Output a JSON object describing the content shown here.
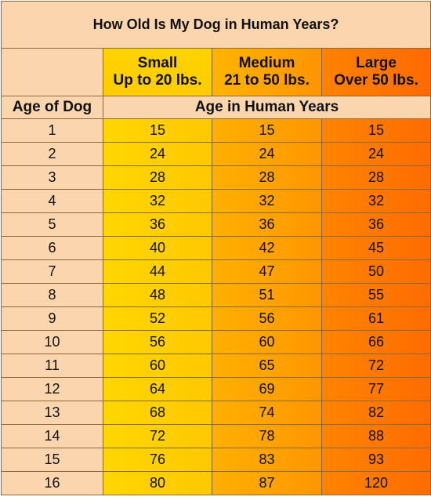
{
  "title": "How Old Is My Dog in Human Years?",
  "columns": [
    {
      "name": "Small",
      "range": "Up to 20 lbs."
    },
    {
      "name": "Medium",
      "range": "21 to 50 lbs."
    },
    {
      "name": "Large",
      "range": "Over 50 lbs."
    }
  ],
  "age_header": "Age of Dog",
  "human_header": "Age in Human Years",
  "rows": [
    {
      "age": "1",
      "small": "15",
      "medium": "15",
      "large": "15"
    },
    {
      "age": "2",
      "small": "24",
      "medium": "24",
      "large": "24"
    },
    {
      "age": "3",
      "small": "28",
      "medium": "28",
      "large": "28"
    },
    {
      "age": "4",
      "small": "32",
      "medium": "32",
      "large": "32"
    },
    {
      "age": "5",
      "small": "36",
      "medium": "36",
      "large": "36"
    },
    {
      "age": "6",
      "small": "40",
      "medium": "42",
      "large": "45"
    },
    {
      "age": "7",
      "small": "44",
      "medium": "47",
      "large": "50"
    },
    {
      "age": "8",
      "small": "48",
      "medium": "51",
      "large": "55"
    },
    {
      "age": "9",
      "small": "52",
      "medium": "56",
      "large": "61"
    },
    {
      "age": "10",
      "small": "56",
      "medium": "60",
      "large": "66"
    },
    {
      "age": "11",
      "small": "60",
      "medium": "65",
      "large": "72"
    },
    {
      "age": "12",
      "small": "64",
      "medium": "69",
      "large": "77"
    },
    {
      "age": "13",
      "small": "68",
      "medium": "74",
      "large": "82"
    },
    {
      "age": "14",
      "small": "72",
      "medium": "78",
      "large": "88"
    },
    {
      "age": "15",
      "small": "76",
      "medium": "83",
      "large": "93"
    },
    {
      "age": "16",
      "small": "80",
      "medium": "87",
      "large": "120"
    }
  ],
  "colors": {
    "peach": "#fbd5ad",
    "small": "#ffcc00",
    "medium": "#ffa000",
    "large": "#ff7000"
  }
}
